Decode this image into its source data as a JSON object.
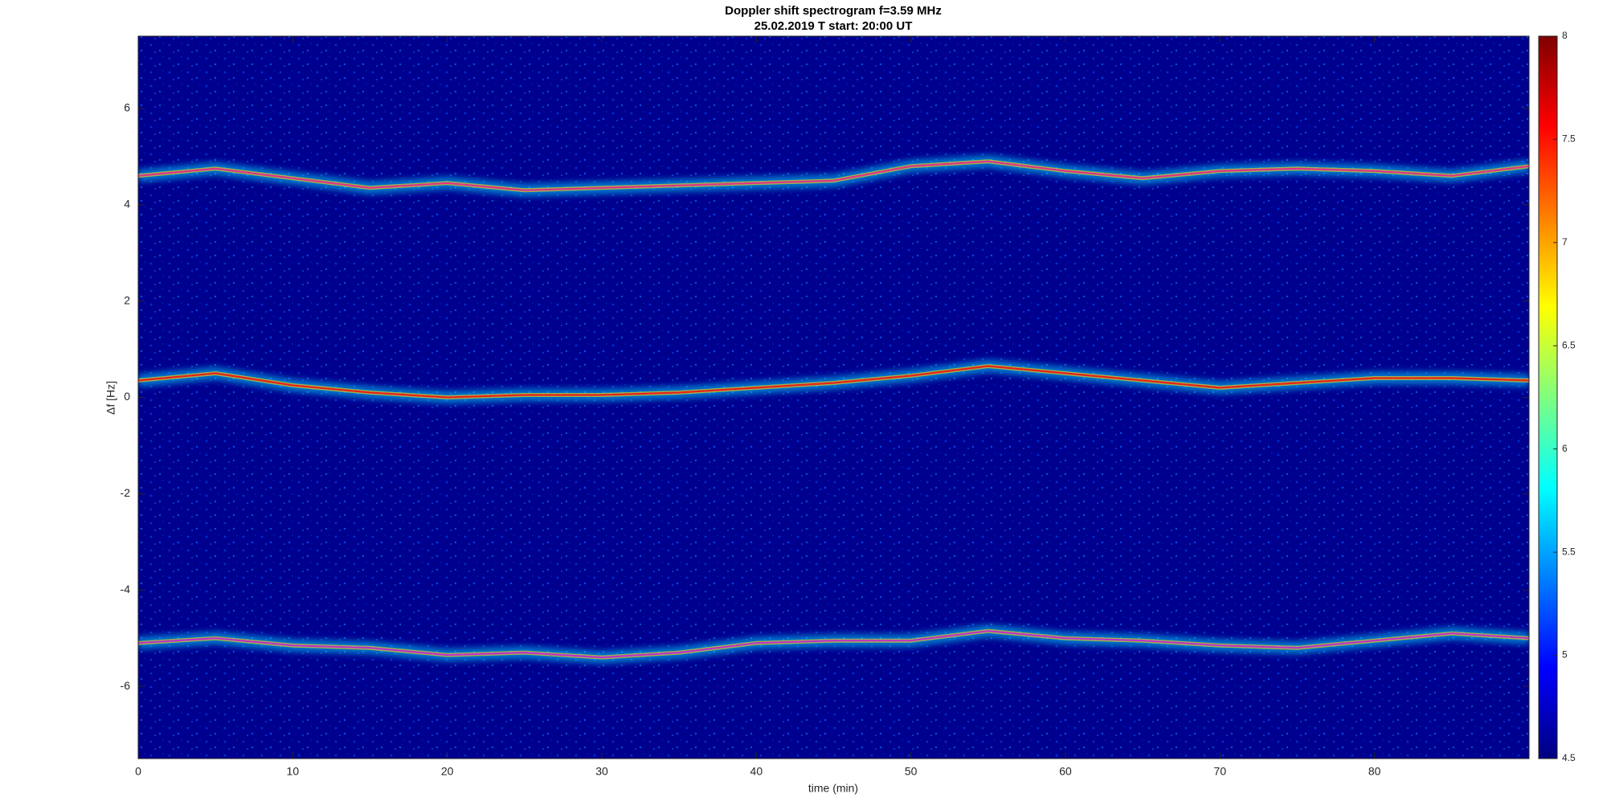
{
  "chart_data": {
    "type": "spectrogram",
    "title": "Doppler shift spectrogram f=3.59 MHz",
    "subtitle": "25.02.2019   T start: 20:00 UT",
    "x_label": "time (min)",
    "y_label": "Δf [Hz]",
    "x": [
      0,
      5,
      10,
      15,
      20,
      25,
      30,
      35,
      40,
      45,
      50,
      55,
      60,
      65,
      70,
      75,
      80,
      85,
      90
    ],
    "series": [
      {
        "color": "#e0308a",
        "values": [
          4.6,
          4.75,
          4.55,
          4.35,
          4.45,
          4.3,
          4.35,
          4.4,
          4.45,
          4.5,
          4.8,
          4.9,
          4.7,
          4.55,
          4.7,
          4.75,
          4.7,
          4.6,
          4.8
        ]
      },
      {
        "color": "#e8201a",
        "values": [
          0.35,
          0.5,
          0.25,
          0.1,
          0.0,
          0.05,
          0.05,
          0.1,
          0.2,
          0.3,
          0.45,
          0.65,
          0.5,
          0.35,
          0.2,
          0.3,
          0.4,
          0.4,
          0.35
        ]
      },
      {
        "color": "#c030c8",
        "values": [
          -5.1,
          -5.0,
          -5.15,
          -5.2,
          -5.35,
          -5.3,
          -5.4,
          -5.3,
          -5.1,
          -5.05,
          -5.05,
          -4.85,
          -5.0,
          -5.05,
          -5.15,
          -5.2,
          -5.05,
          -4.9,
          -5.0
        ]
      }
    ],
    "xlim": [
      0,
      90
    ],
    "xticks": [
      0,
      10,
      20,
      30,
      40,
      50,
      60,
      70,
      80
    ],
    "ylim": [
      -7.5,
      7.5
    ],
    "yticks": [
      -6,
      -4,
      -2,
      0,
      2,
      4,
      6
    ],
    "colormap": "jet",
    "clim": [
      4.5,
      8
    ],
    "cticks": [
      4.5,
      5,
      5.5,
      6,
      6.5,
      7,
      7.5,
      8
    ]
  }
}
